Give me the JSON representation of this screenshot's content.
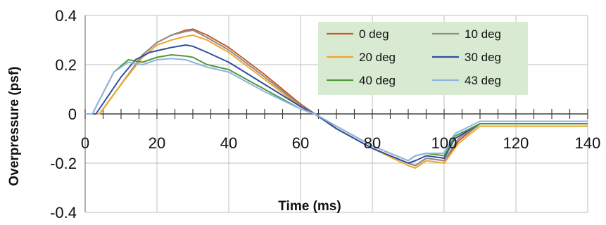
{
  "chart_data": {
    "type": "line",
    "title": "",
    "xlabel": "Time (ms)",
    "ylabel": "Overpressure (psf)",
    "xlim": [
      0,
      140
    ],
    "ylim": [
      -0.4,
      0.4
    ],
    "x_ticks": [
      0,
      20,
      40,
      60,
      80,
      100,
      120,
      140
    ],
    "y_ticks": [
      0.4,
      0.2,
      0,
      -0.2,
      -0.4
    ],
    "x_tick_labels": [
      "0",
      "20",
      "40",
      "60",
      "80",
      "100",
      "120",
      "140"
    ],
    "y_tick_labels": [
      "0.4",
      "0.2",
      "0",
      "-0.2",
      "-0.4"
    ],
    "grid": true,
    "legend_position": "top-right",
    "series": [
      {
        "name": "0 deg",
        "color": "#C55A2B",
        "x": [
          0,
          4,
          10,
          16,
          20,
          24,
          28,
          30,
          34,
          40,
          50,
          60,
          64,
          70,
          80,
          90,
          92,
          95,
          100,
          104,
          110,
          140
        ],
        "y": [
          0,
          0,
          0.12,
          0.24,
          0.29,
          0.32,
          0.34,
          0.345,
          0.32,
          0.27,
          0.16,
          0.04,
          0,
          -0.06,
          -0.14,
          -0.2,
          -0.21,
          -0.18,
          -0.19,
          -0.11,
          -0.04,
          -0.04
        ]
      },
      {
        "name": "10 deg",
        "color": "#8C8C8C",
        "x": [
          0,
          4,
          10,
          16,
          20,
          24,
          28,
          30,
          34,
          40,
          50,
          60,
          64,
          70,
          80,
          90,
          92,
          95,
          100,
          104,
          110,
          140
        ],
        "y": [
          0,
          0,
          0.12,
          0.24,
          0.29,
          0.32,
          0.335,
          0.34,
          0.31,
          0.26,
          0.15,
          0.035,
          0,
          -0.06,
          -0.14,
          -0.2,
          -0.21,
          -0.18,
          -0.19,
          -0.1,
          -0.04,
          -0.04
        ]
      },
      {
        "name": "20 deg",
        "color": "#F0A62A",
        "x": [
          0,
          4,
          10,
          16,
          20,
          24,
          28,
          30,
          34,
          40,
          50,
          60,
          64,
          70,
          80,
          90,
          92,
          95,
          100,
          104,
          110,
          140
        ],
        "y": [
          0,
          0,
          0.12,
          0.23,
          0.28,
          0.3,
          0.315,
          0.32,
          0.3,
          0.25,
          0.14,
          0.03,
          0,
          -0.06,
          -0.14,
          -0.21,
          -0.22,
          -0.19,
          -0.2,
          -0.12,
          -0.05,
          -0.05
        ]
      },
      {
        "name": "30 deg",
        "color": "#2F4EA0",
        "x": [
          0,
          3,
          10,
          14,
          18,
          24,
          28,
          30,
          34,
          40,
          50,
          60,
          64,
          70,
          80,
          90,
          92,
          95,
          100,
          103,
          110,
          140
        ],
        "y": [
          0,
          0,
          0.15,
          0.22,
          0.25,
          0.27,
          0.28,
          0.275,
          0.25,
          0.21,
          0.12,
          0.03,
          0,
          -0.06,
          -0.14,
          -0.2,
          -0.19,
          -0.17,
          -0.18,
          -0.1,
          -0.04,
          -0.04
        ]
      },
      {
        "name": "40 deg",
        "color": "#4E9A3A",
        "x": [
          0,
          2,
          8,
          12,
          16,
          20,
          24,
          28,
          30,
          34,
          40,
          50,
          60,
          64,
          70,
          80,
          90,
          92,
          95,
          100,
          103,
          110,
          140
        ],
        "y": [
          0,
          0,
          0.17,
          0.22,
          0.21,
          0.23,
          0.24,
          0.235,
          0.23,
          0.2,
          0.18,
          0.1,
          0.02,
          0,
          -0.05,
          -0.13,
          -0.19,
          -0.17,
          -0.16,
          -0.17,
          -0.09,
          -0.04,
          -0.04
        ]
      },
      {
        "name": "43 deg",
        "color": "#8FB4E3",
        "x": [
          0,
          2,
          8,
          12,
          16,
          20,
          24,
          28,
          30,
          34,
          40,
          50,
          60,
          64,
          70,
          80,
          90,
          92,
          95,
          100,
          103,
          110,
          140
        ],
        "y": [
          0,
          0,
          0.17,
          0.21,
          0.2,
          0.22,
          0.225,
          0.22,
          0.21,
          0.19,
          0.17,
          0.09,
          0.02,
          0,
          -0.05,
          -0.13,
          -0.19,
          -0.17,
          -0.16,
          -0.16,
          -0.08,
          -0.03,
          -0.03
        ]
      }
    ],
    "legend_background": "#D8EBD2"
  }
}
